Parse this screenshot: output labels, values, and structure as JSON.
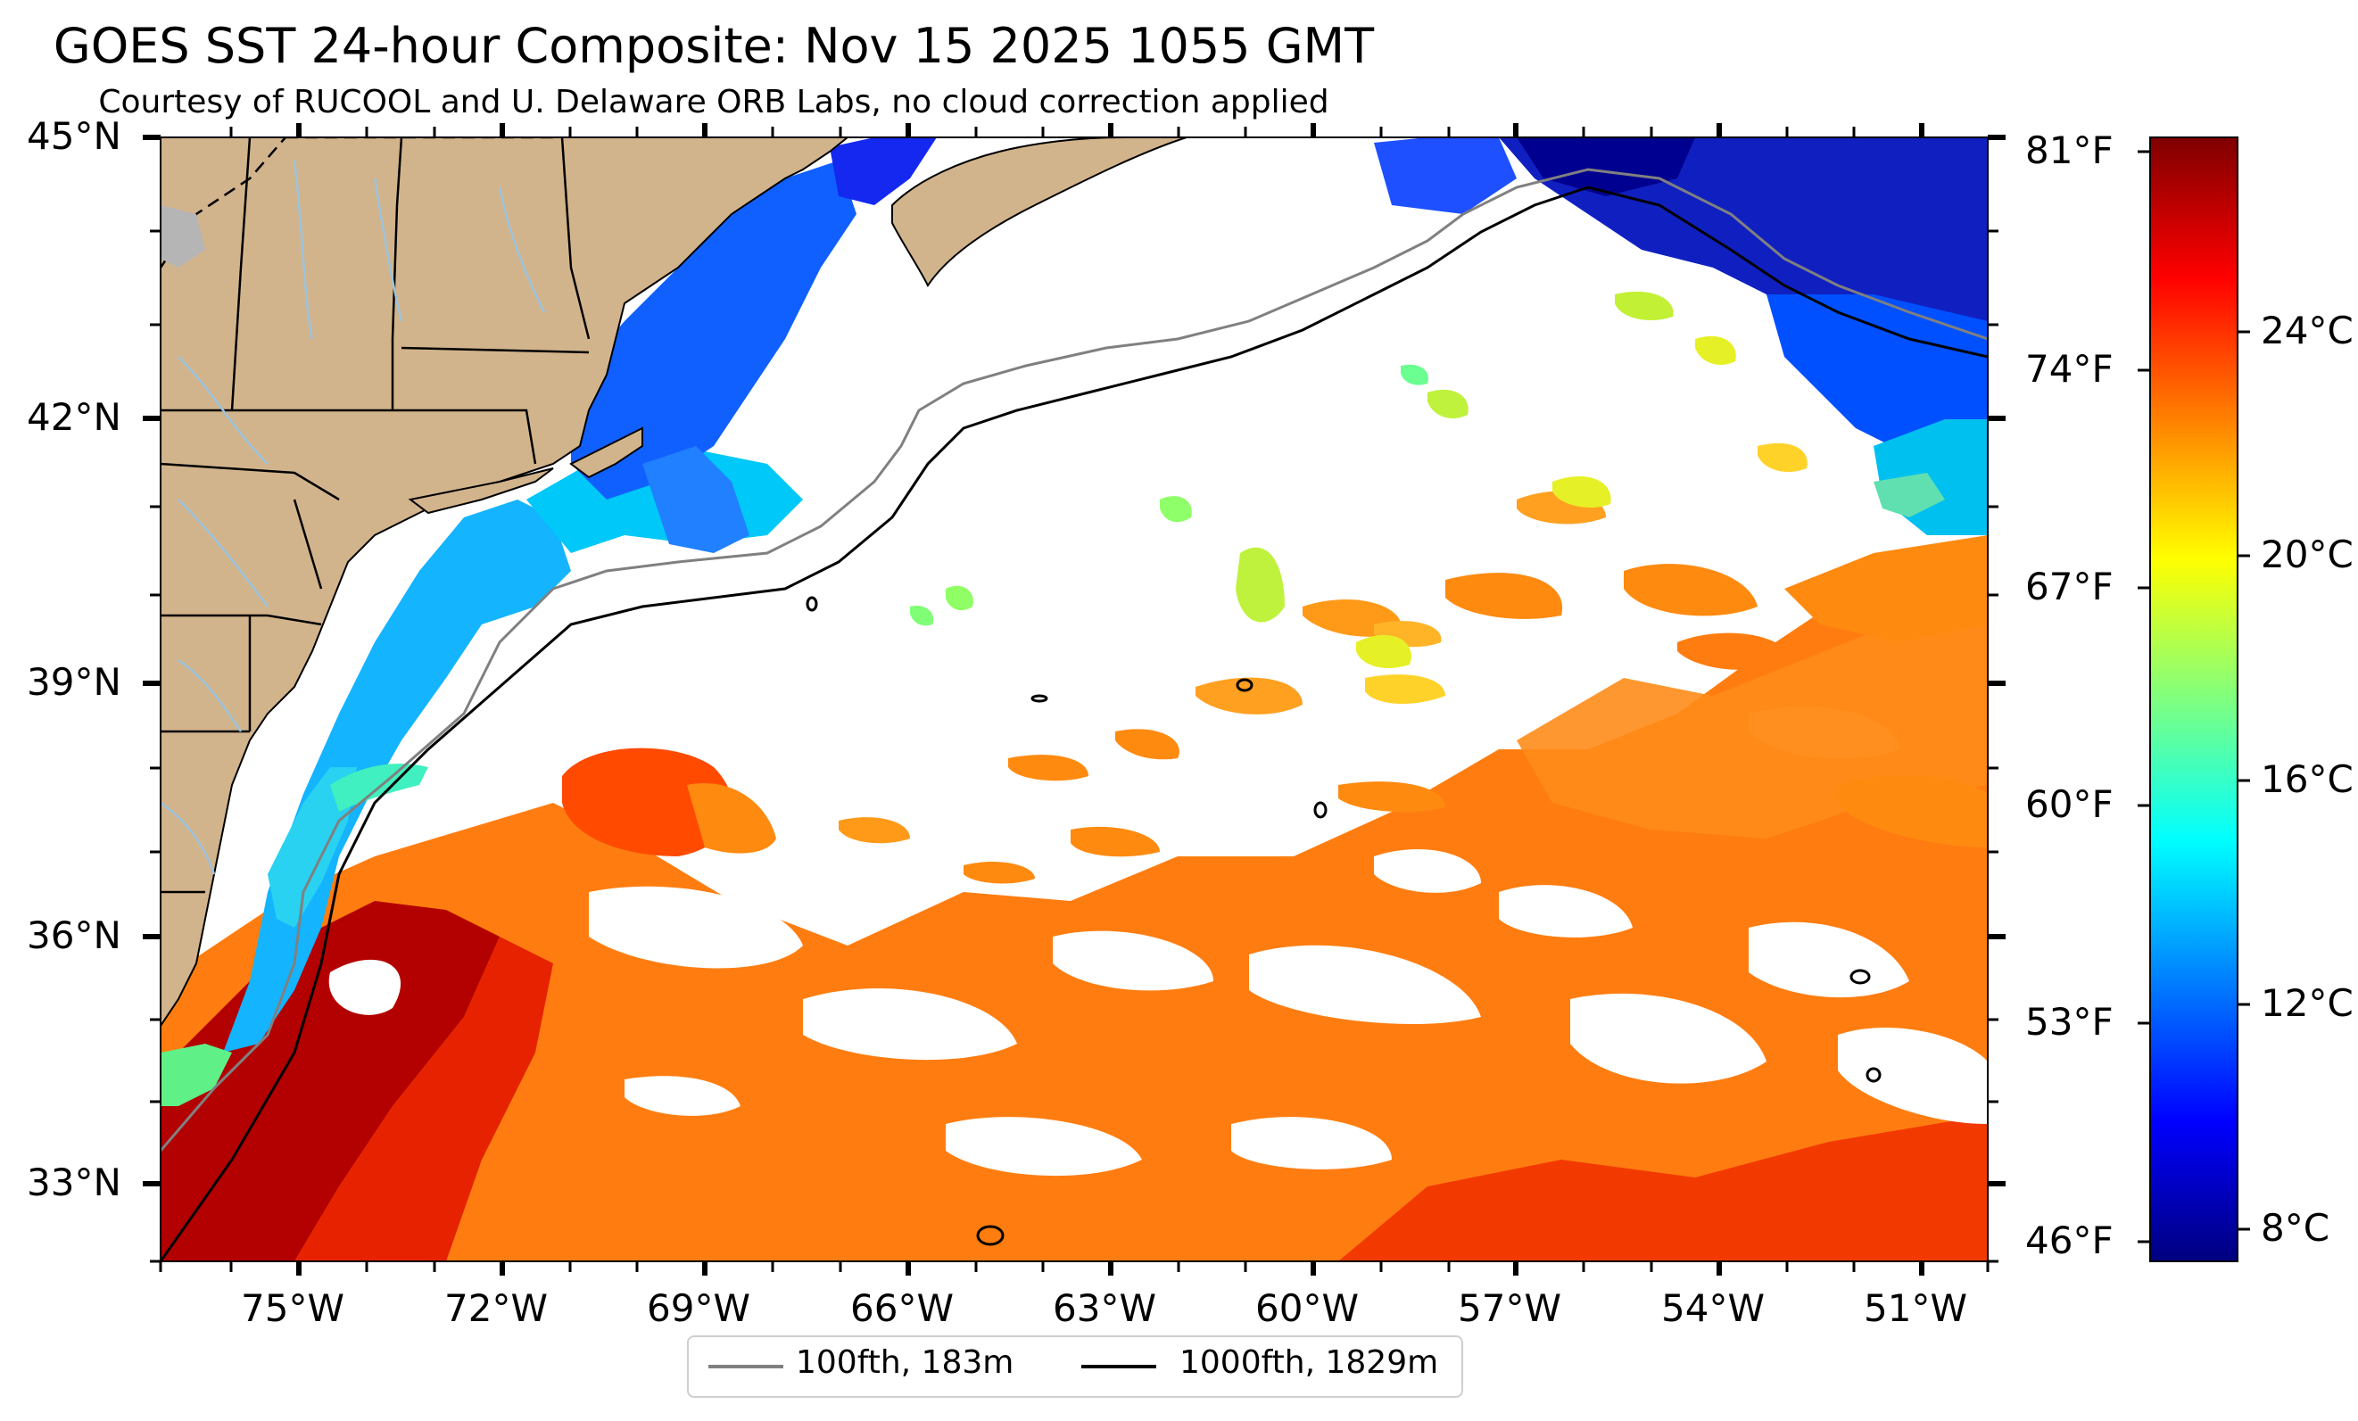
{
  "title": "GOES SST 24-hour Composite: Nov 15 2025 1055 GMT",
  "subtitle": "Courtesy of RUCOOL and U. Delaware ORB Labs, no cloud correction applied",
  "lat_labels": [
    "45°N",
    "42°N",
    "39°N",
    "36°N",
    "33°N"
  ],
  "lon_labels": [
    "75°W",
    "72°W",
    "69°W",
    "66°W",
    "63°W",
    "60°W",
    "57°W",
    "54°W",
    "51°W"
  ],
  "fahrenheit_labels": [
    "81°F",
    "74°F",
    "67°F",
    "60°F",
    "53°F",
    "46°F"
  ],
  "celsius_labels": [
    "24°C",
    "20°C",
    "16°C",
    "12°C",
    "8°C"
  ],
  "legend": [
    {
      "label": "100fth, 183m",
      "color": "#808080"
    },
    {
      "label": "1000fth, 1829m",
      "color": "#000000"
    }
  ],
  "colors": {
    "land": "#d2b48c",
    "rivers": "#9cc3dd",
    "lakes": "#b5b5b5",
    "no_data": "#ffffff"
  },
  "colormap": "jet"
}
